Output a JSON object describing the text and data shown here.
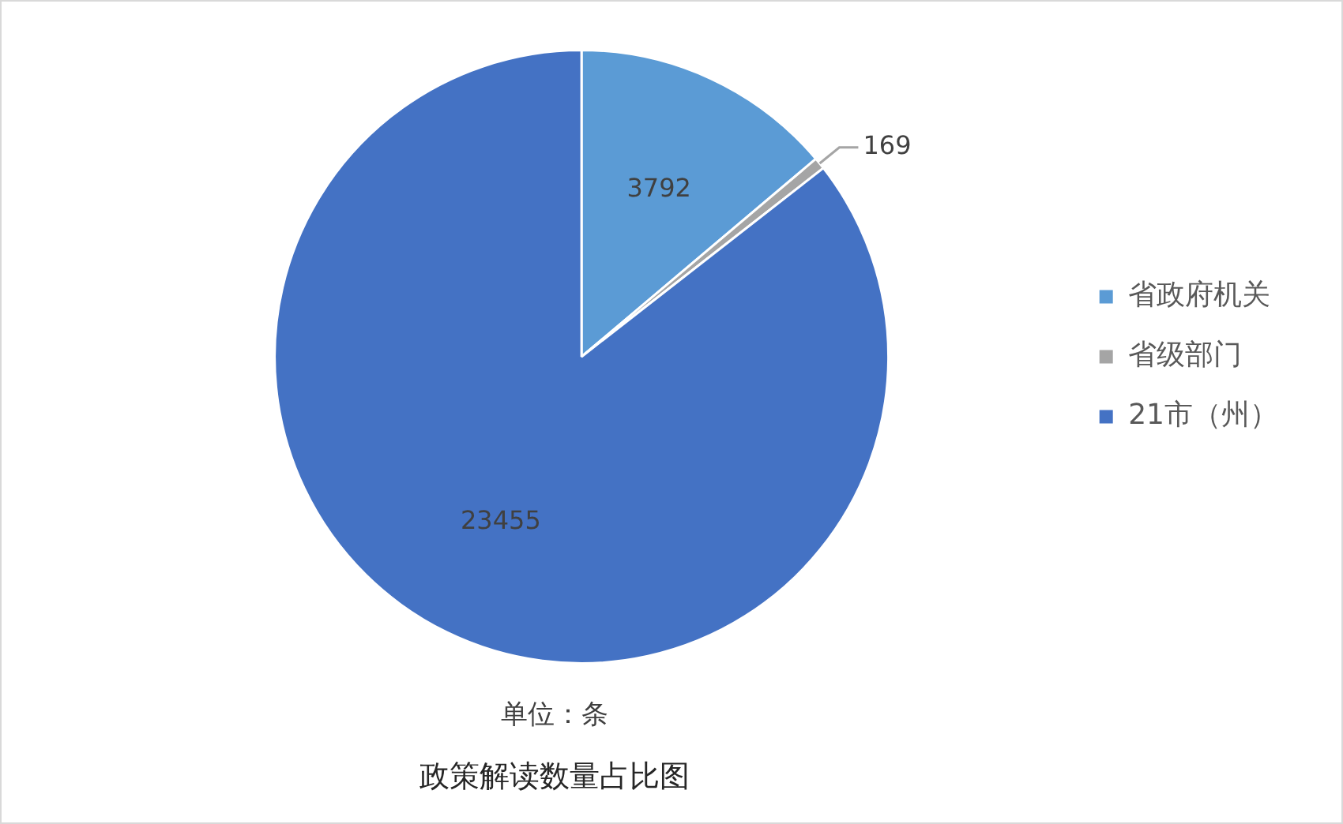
{
  "chart_data": {
    "type": "pie",
    "title": "政策解读数量占比图",
    "annotations": [
      "单位：条"
    ],
    "categories": [
      "省政府机关",
      "省级部门",
      "21市（州）"
    ],
    "values": [
      3792,
      169,
      23455
    ],
    "colors": [
      "#5b9bd5",
      "#a5a5a5",
      "#4472c4"
    ],
    "data_labels": true,
    "legend": "right"
  }
}
